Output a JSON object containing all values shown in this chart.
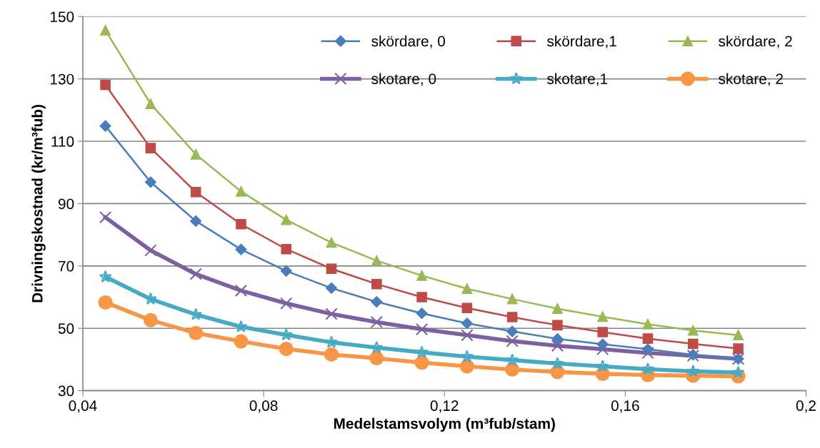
{
  "chart_data": {
    "type": "line",
    "xlabel": "Medelstamsvolym (m³fub/stam)",
    "ylabel": "Drivningskostnad (kr/m³fub)",
    "x": [
      0.045,
      0.055,
      0.065,
      0.075,
      0.085,
      0.095,
      0.105,
      0.115,
      0.125,
      0.135,
      0.145,
      0.155,
      0.165,
      0.175,
      0.185
    ],
    "xlim": [
      0.04,
      0.2
    ],
    "xticks": [
      {
        "value": 0.04,
        "label": "0,04"
      },
      {
        "value": 0.08,
        "label": "0,08"
      },
      {
        "value": 0.12,
        "label": "0,12"
      },
      {
        "value": 0.16,
        "label": "0,16"
      },
      {
        "value": 0.2,
        "label": "0,2"
      }
    ],
    "ylim": [
      30,
      150
    ],
    "yticks": [
      30,
      50,
      70,
      90,
      110,
      130,
      150
    ],
    "grid": "y",
    "legend": "top right",
    "line_style": "solid",
    "series": [
      {
        "name": "skördare, 0",
        "color": "#4a7ebb",
        "marker": "diamond",
        "values": [
          114.9,
          96.9,
          84.4,
          75.3,
          68.4,
          62.9,
          58.5,
          54.8,
          51.6,
          49.0,
          46.6,
          44.9,
          43.3,
          41.5,
          40.2
        ]
      },
      {
        "name": "skördare,1",
        "color": "#be4b48",
        "marker": "square",
        "values": [
          128.1,
          107.8,
          93.7,
          83.4,
          75.4,
          69.1,
          64.2,
          60.0,
          56.5,
          53.6,
          51.0,
          48.8,
          46.7,
          45.0,
          43.5
        ]
      },
      {
        "name": "skördare, 2",
        "color": "#98b954",
        "marker": "triangle",
        "values": [
          145.6,
          122.0,
          105.8,
          93.9,
          84.8,
          77.5,
          71.7,
          66.9,
          62.7,
          59.4,
          56.3,
          53.7,
          51.3,
          49.3,
          47.8
        ]
      },
      {
        "name": "skotare, 0",
        "color": "#7d60a0",
        "marker": "cross",
        "values": [
          85.6,
          75.0,
          67.4,
          62.1,
          58.0,
          54.6,
          52.0,
          49.7,
          47.8,
          45.9,
          44.4,
          43.3,
          42.1,
          41.2,
          40.2
        ]
      },
      {
        "name": "skotare,1",
        "color": "#46aac5",
        "marker": "star",
        "values": [
          66.5,
          59.4,
          54.4,
          50.5,
          47.9,
          45.5,
          43.8,
          42.3,
          40.9,
          39.8,
          38.7,
          37.8,
          36.9,
          36.2,
          35.8
        ]
      },
      {
        "name": "skotare, 2",
        "color": "#f79646",
        "marker": "circle",
        "values": [
          58.3,
          52.6,
          48.5,
          45.8,
          43.4,
          41.6,
          40.4,
          39.0,
          37.8,
          36.8,
          36.0,
          35.4,
          35.0,
          34.8,
          34.6
        ]
      }
    ]
  }
}
